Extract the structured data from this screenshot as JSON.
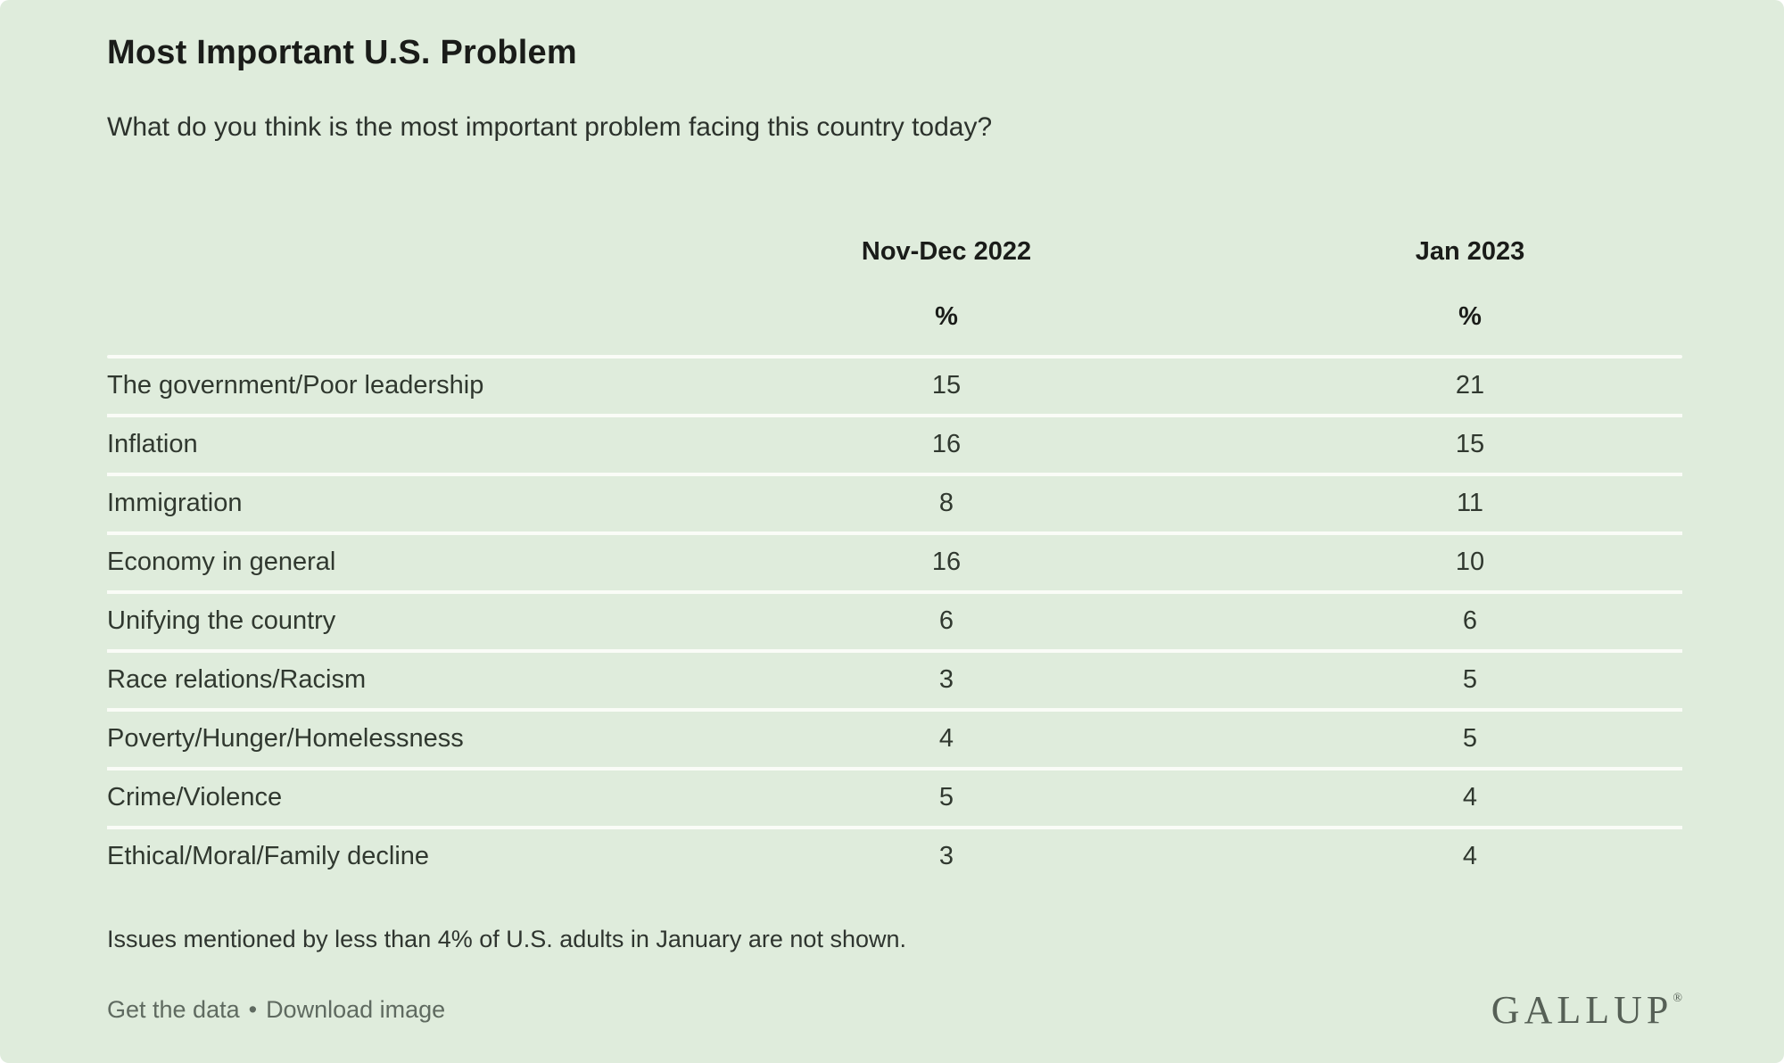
{
  "page": {
    "title": "Most Important U.S. Problem",
    "subtitle": "What do you think is the most important problem facing this country today?"
  },
  "colors": {
    "background": "#dfecdc",
    "divider": "#fafcf7",
    "text": "#30382f",
    "heading_text": "#1a1c19",
    "muted_text": "#5f6a60",
    "logo": "#566056"
  },
  "table": {
    "columns": [
      "Nov-Dec 2022",
      "Jan 2023"
    ],
    "unit_label": "%",
    "rows": [
      {
        "label": "The government/Poor leadership",
        "values": [
          "15",
          "21"
        ]
      },
      {
        "label": "Inflation",
        "values": [
          "16",
          "15"
        ]
      },
      {
        "label": "Immigration",
        "values": [
          "8",
          "11"
        ]
      },
      {
        "label": "Economy in general",
        "values": [
          "16",
          "10"
        ]
      },
      {
        "label": "Unifying the country",
        "values": [
          "6",
          "6"
        ]
      },
      {
        "label": "Race relations/Racism",
        "values": [
          "3",
          "5"
        ]
      },
      {
        "label": "Poverty/Hunger/Homelessness",
        "values": [
          "4",
          "5"
        ]
      },
      {
        "label": "Crime/Violence",
        "values": [
          "5",
          "4"
        ]
      },
      {
        "label": "Ethical/Moral/Family decline",
        "values": [
          "3",
          "4"
        ]
      }
    ]
  },
  "footnote": "Issues mentioned by less than 4% of U.S. adults in January are not shown.",
  "footer": {
    "get_data_label": "Get the data",
    "separator": "•",
    "download_image_label": "Download image",
    "logo_text": "GALLUP",
    "registered_mark": "®"
  },
  "chart_data": {
    "type": "table",
    "title": "Most Important U.S. Problem",
    "subtitle": "What do you think is the most important problem facing this country today?",
    "unit": "%",
    "categories": [
      "The government/Poor leadership",
      "Inflation",
      "Immigration",
      "Economy in general",
      "Unifying the country",
      "Race relations/Racism",
      "Poverty/Hunger/Homelessness",
      "Crime/Violence",
      "Ethical/Moral/Family decline"
    ],
    "series": [
      {
        "name": "Nov-Dec 2022",
        "values": [
          15,
          16,
          8,
          16,
          6,
          3,
          4,
          5,
          3
        ]
      },
      {
        "name": "Jan 2023",
        "values": [
          21,
          15,
          11,
          10,
          6,
          5,
          5,
          4,
          4
        ]
      }
    ],
    "footnote": "Issues mentioned by less than 4% of U.S. adults in January are not shown.",
    "source": "GALLUP"
  }
}
